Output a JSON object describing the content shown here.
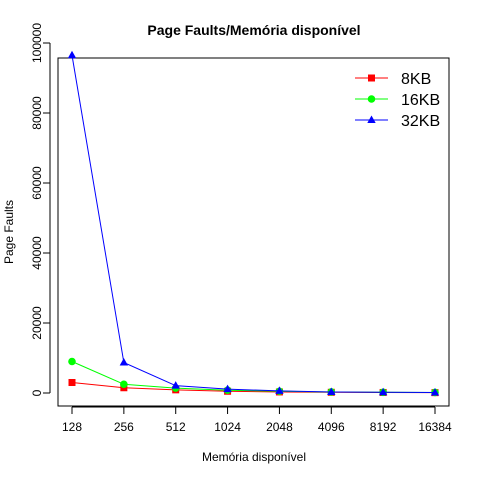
{
  "chart_data": {
    "type": "line",
    "title": "Page Faults/Memória disponível",
    "xlabel": "Memória disponível",
    "ylabel": "Page Faults",
    "categories": [
      "128",
      "256",
      "512",
      "1024",
      "2048",
      "4096",
      "8192",
      "16384"
    ],
    "y_ticks": [
      "0",
      "20000",
      "40000",
      "60000",
      "80000",
      "100000"
    ],
    "y_tick_values": [
      0,
      20000,
      40000,
      60000,
      80000,
      100000
    ],
    "ylim": [
      0,
      100000
    ],
    "grid": false,
    "legend_position": "top-right",
    "series": [
      {
        "name": "8KB",
        "color": "#ff0000",
        "marker": "square",
        "values": [
          3000,
          1500,
          900,
          500,
          300,
          200,
          150,
          100
        ]
      },
      {
        "name": "16KB",
        "color": "#00ff00",
        "marker": "circle",
        "values": [
          9000,
          2500,
          1400,
          800,
          500,
          300,
          200,
          150
        ]
      },
      {
        "name": "32KB",
        "color": "#0000ff",
        "marker": "triangle",
        "values": [
          96500,
          8700,
          2100,
          1100,
          600,
          300,
          200,
          150
        ]
      }
    ]
  }
}
